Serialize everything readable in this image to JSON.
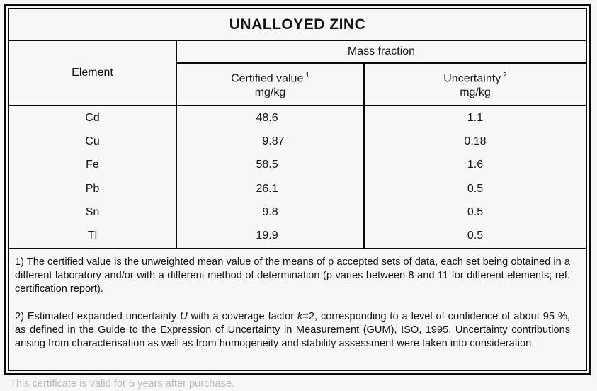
{
  "title": "UNALLOYED ZINC",
  "table": {
    "header": {
      "element": "Element",
      "mass_fraction": "Mass fraction",
      "certified": {
        "label": "Certified value",
        "sup": "1",
        "unit": "mg/kg"
      },
      "uncertainty": {
        "label": "Uncertainty",
        "sup": "2",
        "unit": "mg/kg"
      }
    },
    "rows": [
      {
        "element": "Cd",
        "certified_value": "48.6",
        "uncertainty": "1.1"
      },
      {
        "element": "Cu",
        "certified_value": "9.87",
        "uncertainty": "0.18"
      },
      {
        "element": "Fe",
        "certified_value": "58.5",
        "uncertainty": "1.6"
      },
      {
        "element": "Pb",
        "certified_value": "26.1",
        "uncertainty": "0.5"
      },
      {
        "element": "Sn",
        "certified_value": "9.8",
        "uncertainty": "0.5"
      },
      {
        "element": "Tl",
        "certified_value": "19.9",
        "uncertainty": "0.5"
      }
    ]
  },
  "footnotes": {
    "note1": "1) The certified value is the unweighted mean value of the means of p accepted sets of data, each set being obtained in a different laboratory and/or with a different method of determination (p varies between 8 and 11 for different elements; ref. certification report).",
    "note2_segments": [
      {
        "text": "2) Estimated expanded uncertainty "
      },
      {
        "text": "U",
        "italic": true
      },
      {
        "text": " with a coverage factor "
      },
      {
        "text": "k",
        "italic": true
      },
      {
        "text": "=2, corresponding to a level of confidence of about 95 %, as defined in the Guide to the Expression of Uncertainty in Measurement (GUM), ISO, 1995. Uncertainty contributions arising from characterisation as well as from homogeneity and stability assessment were taken into consideration."
      }
    ]
  },
  "footer": {
    "clipped_text": "This certificate is valid for 5 years after purchase."
  },
  "colors": {
    "background": "#f7f7f7",
    "border": "#0a0a0a",
    "text": "#141414"
  }
}
